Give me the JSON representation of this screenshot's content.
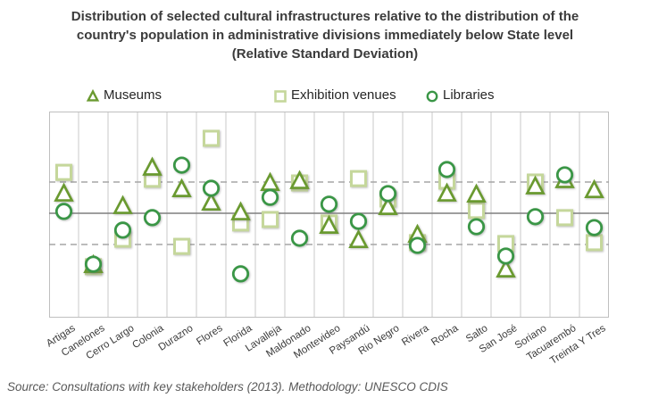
{
  "title": {
    "lines": [
      "Distribution of selected cultural infrastructures relative to the distribution of the",
      "country's population in administrative divisions immediately below State level",
      "(Relative Standard Deviation)"
    ]
  },
  "legend": [
    {
      "label": "Museums",
      "marker": "triangle"
    },
    {
      "label": "Exhibition venues",
      "marker": "square"
    },
    {
      "label": "Libraries",
      "marker": "circle"
    }
  ],
  "source": "Source: Consultations with key stakeholders (2013). Methodology: UNESCO CDIS",
  "colors": {
    "museums": "#6a9a30",
    "exhibition_venues": "#c5d79b",
    "libraries": "#3a9646",
    "mean_line": "#7f7f7f",
    "band_line": "#a6a6a6",
    "gridline": "#c9c9c9",
    "plot_border": "#bfbfbf",
    "title_text": "#3b3b3b",
    "source_text": "#595959"
  },
  "chart_data": {
    "type": "scatter",
    "title": "Distribution of selected cultural infrastructures relative to the distribution of the country's population in administrative divisions immediately below State level (Relative Standard Deviation)",
    "xlabel": "",
    "ylabel": "",
    "categories": [
      "Artigas",
      "Canelones",
      "Cerro Largo",
      "Colonia",
      "Durazno",
      "Flores",
      "Florida",
      "Lavalleja",
      "Maldonado",
      "Montevideo",
      "Paysandú",
      "Rio Negro",
      "Rivera",
      "Rocha",
      "Salto",
      "San José",
      "Soriano",
      "Tacuarembó",
      "Treinta Y Tres"
    ],
    "series": [
      {
        "name": "Museums",
        "marker": "triangle",
        "values": [
          0.63,
          -1.66,
          0.23,
          1.46,
          0.77,
          0.34,
          0.03,
          0.97,
          1.03,
          -0.4,
          -0.86,
          0.2,
          -0.69,
          0.63,
          0.6,
          -1.8,
          0.86,
          1.06,
          0.74
        ]
      },
      {
        "name": "Exhibition venues",
        "marker": "square",
        "values": [
          1.31,
          -1.71,
          -0.83,
          1.09,
          -1.06,
          2.4,
          -0.31,
          -0.2,
          0.97,
          -0.31,
          1.11,
          0.46,
          -0.94,
          1.03,
          0.09,
          -0.97,
          1.0,
          -0.14,
          -0.94
        ]
      },
      {
        "name": "Libraries",
        "marker": "circle",
        "values": [
          0.06,
          -1.63,
          -0.54,
          -0.14,
          1.54,
          0.8,
          -1.94,
          0.51,
          -0.8,
          0.29,
          -0.26,
          0.63,
          -1.03,
          1.4,
          -0.43,
          -1.37,
          -0.11,
          1.23,
          -0.46
        ]
      }
    ],
    "reference_lines": {
      "mean": 0,
      "upper_band": 1,
      "lower_band": -1
    },
    "ylim": [
      -3.3,
      3.3
    ],
    "grid": "vertical-category-separators",
    "legend_position": "top"
  }
}
